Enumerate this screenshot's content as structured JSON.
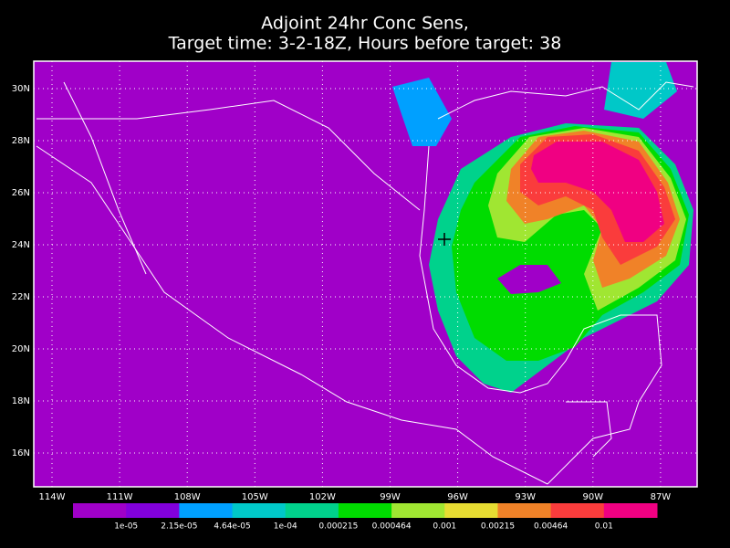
{
  "title": [
    "Adjoint 24hr Conc Sens,",
    "Target time: 3-2-18Z, Hours before target: 38"
  ],
  "lat_labels": [
    "30N",
    "28N",
    "26N",
    "24N",
    "22N",
    "20N",
    "18N",
    "16N"
  ],
  "lon_labels": [
    "114W",
    "111W",
    "108W",
    "105W",
    "102W",
    "99W",
    "96W",
    "93W",
    "90W",
    "87W"
  ],
  "colorbar": {
    "colors": [
      "#a000c8",
      "#8200dc",
      "#00a0ff",
      "#00c8c8",
      "#00d28c",
      "#00dc00",
      "#a0e632",
      "#e6dc32",
      "#f08228",
      "#fa3c3c",
      "#f00082"
    ],
    "labels": [
      "1e-05",
      "2.15e-05",
      "4.64e-05",
      "1e-04",
      "0.000215",
      "0.000464",
      "0.001",
      "0.00215",
      "0.00464",
      "0.01"
    ]
  }
}
